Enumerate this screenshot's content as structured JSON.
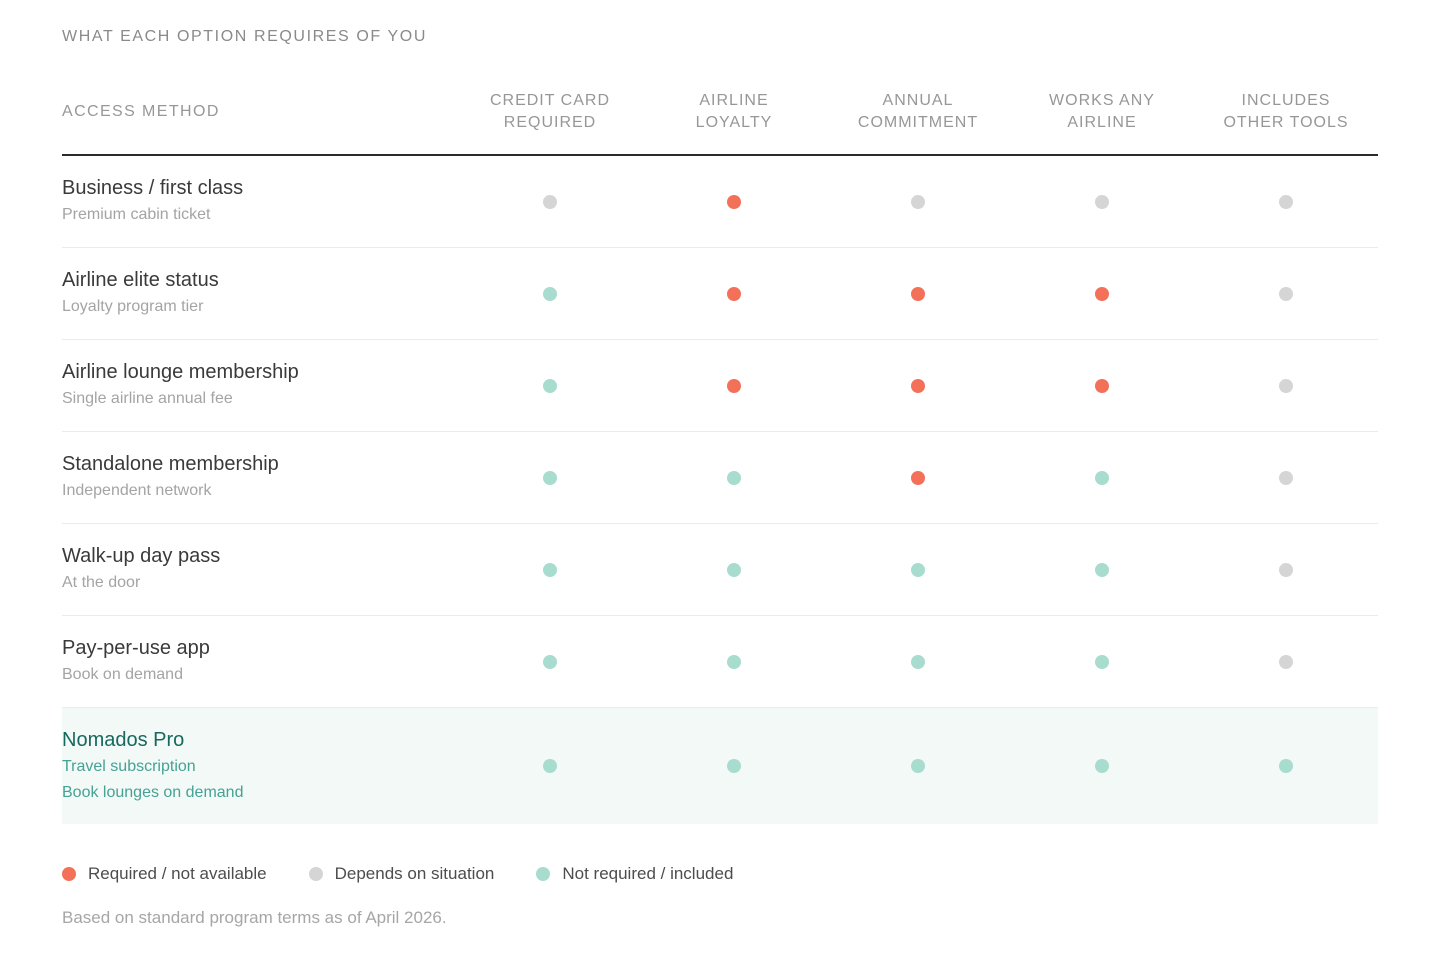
{
  "page": {
    "title": "WHAT EACH OPTION REQUIRES OF YOU",
    "footnote": "Based on standard program terms as of April 2026."
  },
  "colors": {
    "required_dot": "#f37059",
    "depends_dot": "#d5d5d5",
    "included_dot": "#a8dccf",
    "highlight_row_bg": "#f2f9f6",
    "highlight_title": "#17695f",
    "highlight_subtitle": "#45a294"
  },
  "table": {
    "access_method_header": "ACCESS METHOD",
    "columns": [
      "CREDIT CARD\nREQUIRED",
      "AIRLINE\nLOYALTY",
      "ANNUAL\nCOMMITMENT",
      "WORKS ANY\nAIRLINE",
      "INCLUDES\nOTHER TOOLS"
    ],
    "rows": [
      {
        "title": "Business / first class",
        "subtitle": "Premium cabin ticket",
        "dots": [
          "depends",
          "required",
          "depends",
          "depends",
          "depends"
        ]
      },
      {
        "title": "Airline elite status",
        "subtitle": "Loyalty program tier",
        "dots": [
          "included",
          "required",
          "required",
          "required",
          "depends"
        ]
      },
      {
        "title": "Airline lounge membership",
        "subtitle": "Single airline annual fee",
        "dots": [
          "included",
          "required",
          "required",
          "required",
          "depends"
        ]
      },
      {
        "title": "Standalone membership",
        "subtitle": "Independent network",
        "dots": [
          "included",
          "included",
          "required",
          "included",
          "depends"
        ]
      },
      {
        "title": "Walk-up day pass",
        "subtitle": "At the door",
        "dots": [
          "included",
          "included",
          "included",
          "included",
          "depends"
        ]
      },
      {
        "title": "Pay-per-use app",
        "subtitle": "Book on demand",
        "dots": [
          "included",
          "included",
          "included",
          "included",
          "depends"
        ]
      },
      {
        "title": "Nomados Pro",
        "subtitle": "Travel subscription",
        "subtitle2": "Book lounges on demand",
        "dots": [
          "included",
          "included",
          "included",
          "included",
          "included"
        ]
      }
    ]
  },
  "legend": {
    "items": [
      {
        "status": "required",
        "label": "Required / not available"
      },
      {
        "status": "depends",
        "label": "Depends on situation"
      },
      {
        "status": "included",
        "label": "Not required / included"
      }
    ]
  }
}
